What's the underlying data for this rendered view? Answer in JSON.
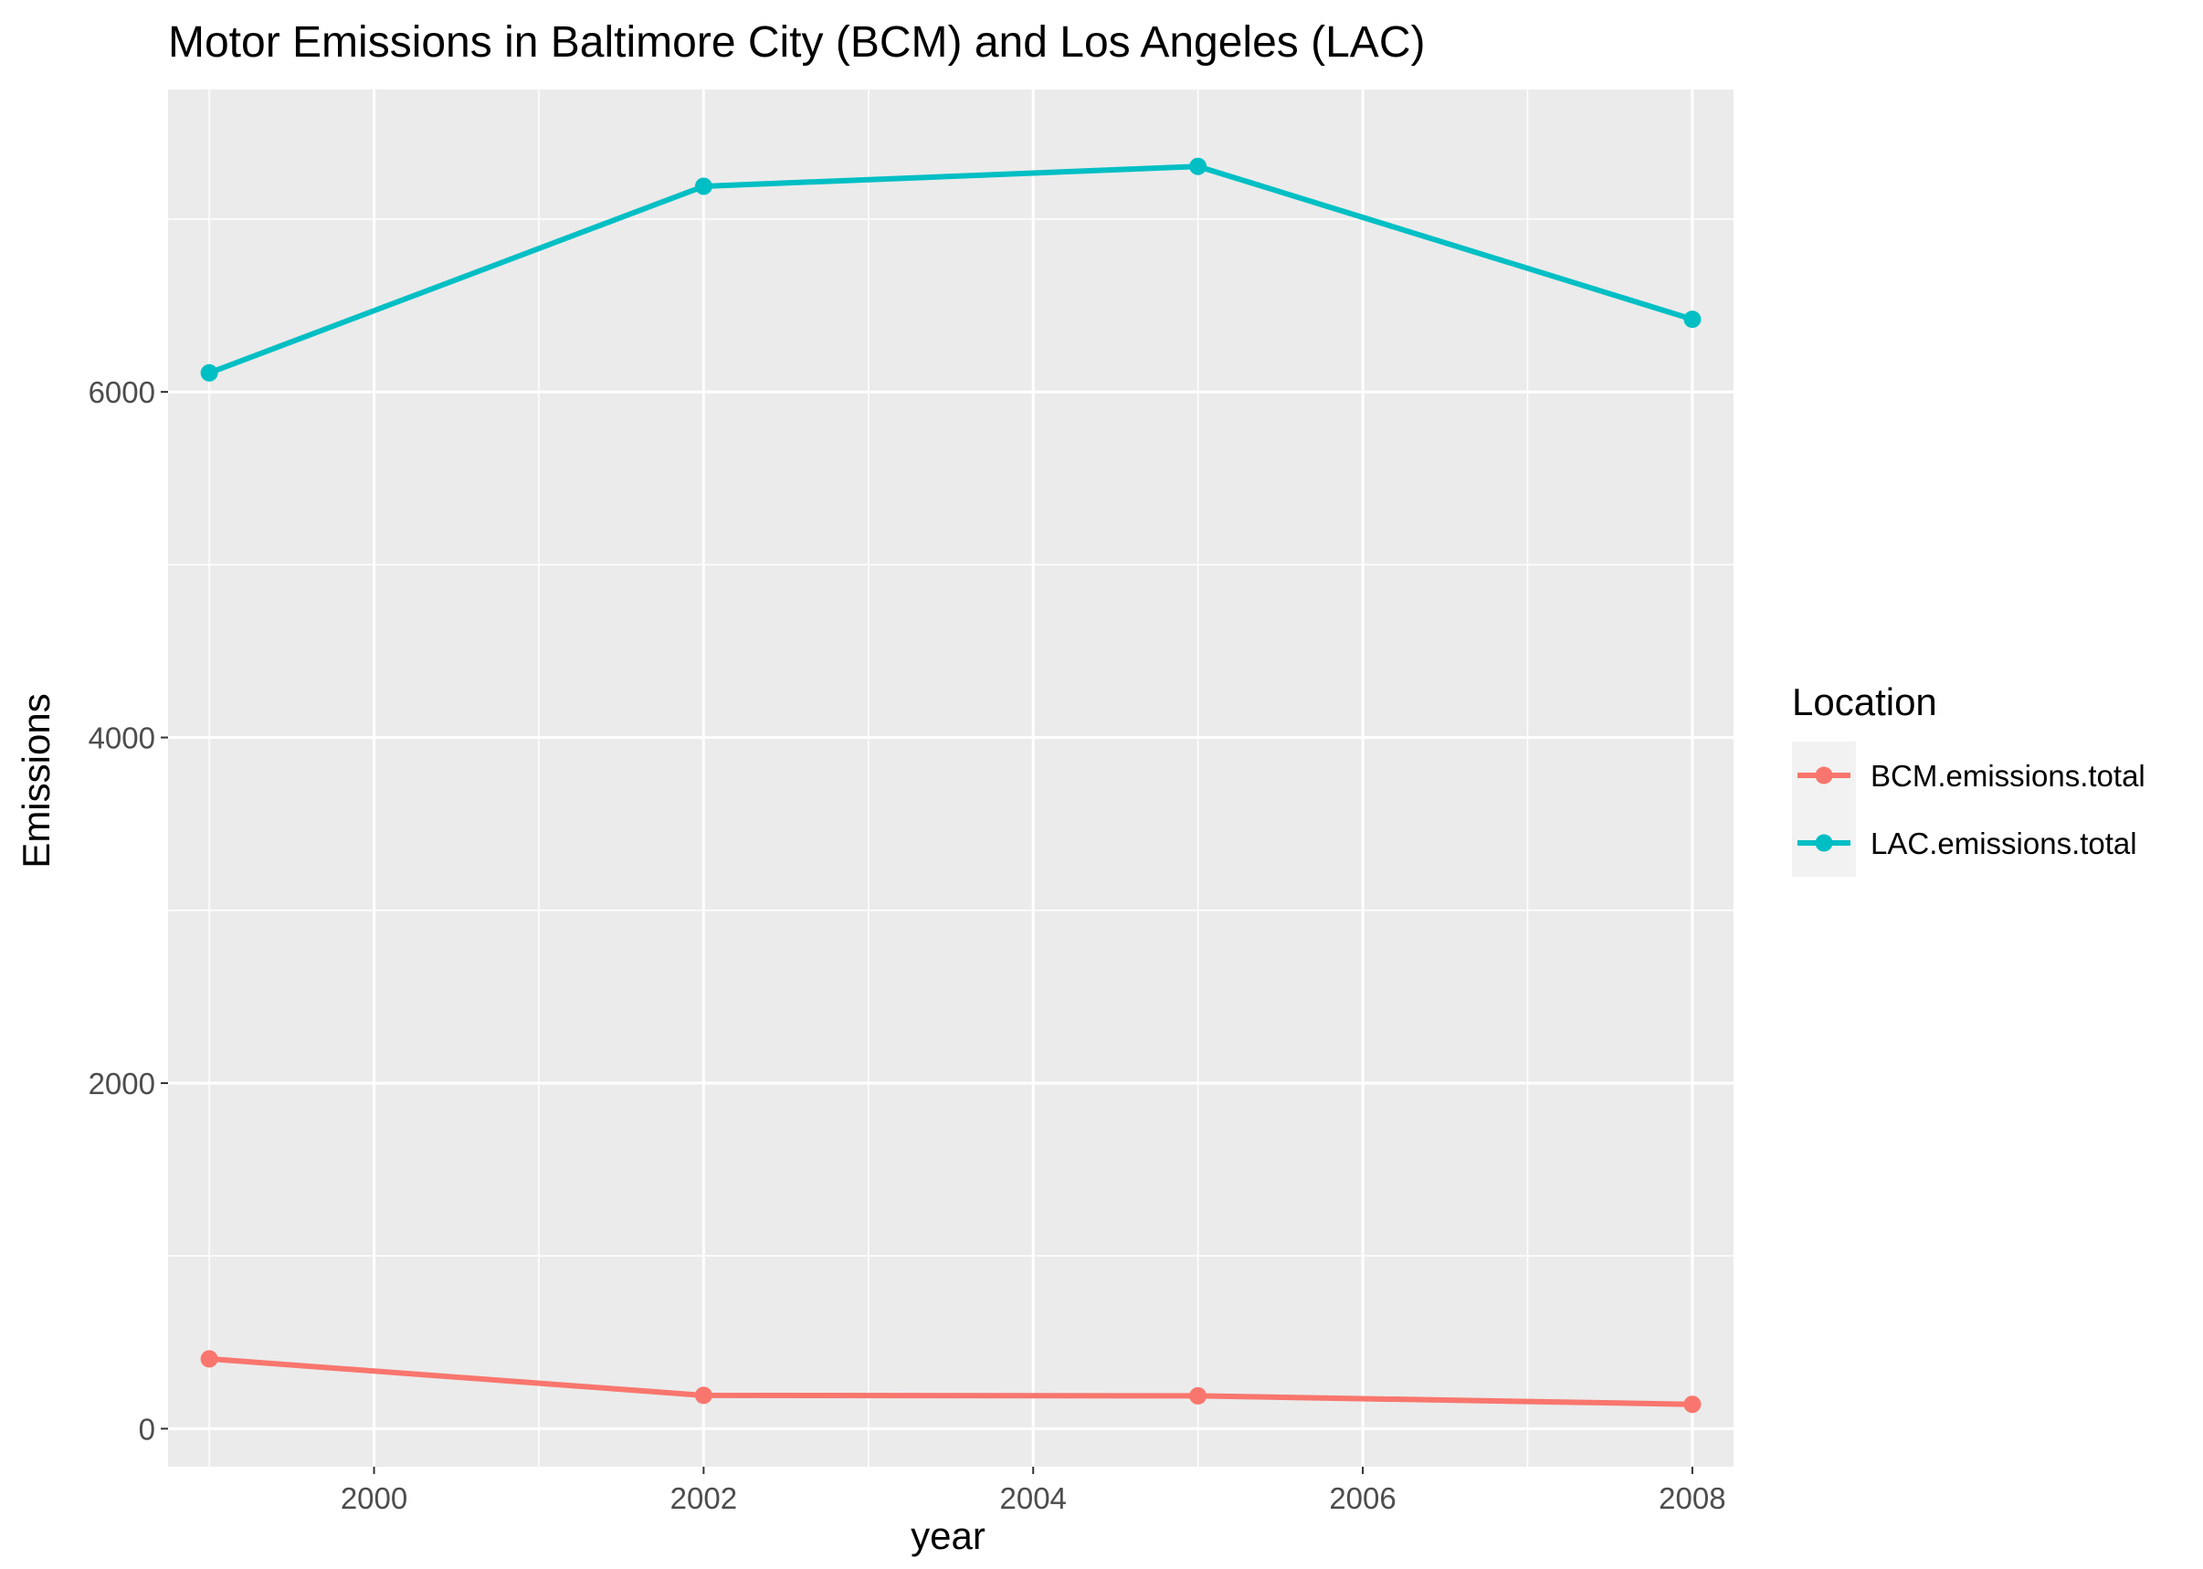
{
  "chart_data": {
    "type": "line",
    "title": "Motor Emissions in Baltimore City (BCM) and Los Angeles (LAC)",
    "xlabel": "year",
    "ylabel": "Emissions",
    "xlim": [
      1998.75,
      2008.25
    ],
    "ylim": [
      -220,
      7750
    ],
    "x_ticks": [
      2000,
      2002,
      2004,
      2006,
      2008
    ],
    "x_tick_labels": [
      "2000",
      "2002",
      "2004",
      "2006",
      "2008"
    ],
    "y_ticks": [
      0,
      2000,
      4000,
      6000
    ],
    "y_tick_labels": [
      "0",
      "2000",
      "4000",
      "6000"
    ],
    "x": [
      1999,
      2002,
      2005,
      2008
    ],
    "series": [
      {
        "name": "BCM.emissions.total",
        "color": "#f8766d",
        "values": [
          404,
          193,
          190,
          141
        ]
      },
      {
        "name": "LAC.emissions.total",
        "color": "#00bfc4",
        "values": [
          6110,
          7190,
          7305,
          6420
        ]
      }
    ],
    "legend": {
      "title": "Location",
      "position": "right"
    },
    "grid": true,
    "panel_background": "#ebebeb",
    "grid_color": "#ffffff"
  }
}
